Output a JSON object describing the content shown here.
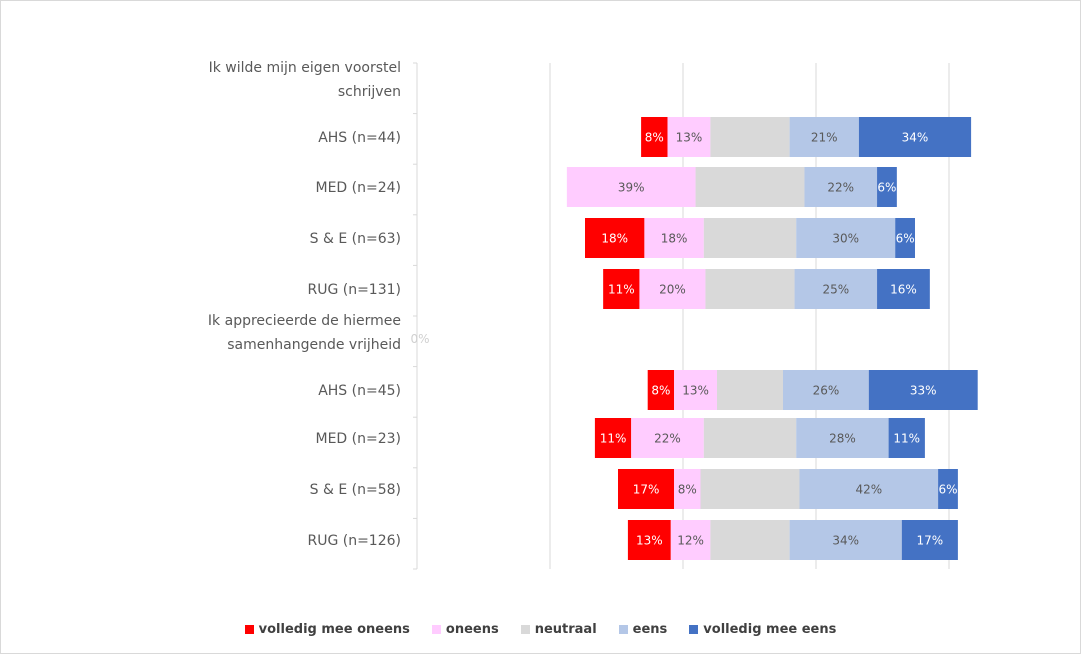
{
  "chart_data": {
    "type": "bar",
    "stacking": "diverging",
    "legend_position": "bottom",
    "grid": true,
    "categories": [
      "Ik wilde mijn eigen voorstel schrijven",
      "AHS (n=44)",
      "MED (n=24)",
      "S & E (n=63)",
      "RUG (n=131)",
      "Ik apprecieerde de hiermee samenhangende vrijheid",
      "AHS (n=45)",
      "MED (n=23)",
      "S & E (n=58)",
      "RUG (n=126)"
    ],
    "series": [
      {
        "name": "volledig mee oneens",
        "color": "#ff0000",
        "label_color": "#ffffff",
        "values": [
          null,
          8,
          0,
          18,
          11,
          null,
          8,
          11,
          17,
          13
        ],
        "labels": [
          null,
          "8%",
          null,
          "18%",
          "11%",
          "0%",
          "8%",
          "11%",
          "17%",
          "13%"
        ]
      },
      {
        "name": "oneens",
        "color": "#ffccff",
        "label_color": "#595959",
        "values": [
          null,
          13,
          39,
          18,
          20,
          null,
          13,
          22,
          8,
          12
        ],
        "labels": [
          null,
          "13%",
          "39%",
          "18%",
          "20%",
          null,
          "13%",
          "22%",
          "8%",
          "12%"
        ]
      },
      {
        "name": "neutraal",
        "color": "#d9d9d9",
        "label_color": "#595959",
        "values": [
          null,
          24,
          33,
          28,
          27,
          null,
          20,
          28,
          30,
          24
        ],
        "labels": [
          null,
          null,
          null,
          null,
          null,
          null,
          null,
          null,
          null,
          null
        ]
      },
      {
        "name": "eens",
        "color": "#b4c7e7",
        "label_color": "#595959",
        "values": [
          null,
          21,
          22,
          30,
          25,
          null,
          26,
          28,
          42,
          34
        ],
        "labels": [
          null,
          "21%",
          "22%",
          "30%",
          "25%",
          null,
          "26%",
          "28%",
          "42%",
          "34%"
        ]
      },
      {
        "name": "volledig mee eens",
        "color": "#4472c4",
        "label_color": "#ffffff",
        "values": [
          null,
          34,
          6,
          6,
          16,
          null,
          33,
          11,
          6,
          17
        ],
        "labels": [
          null,
          "34%",
          "6%",
          "6%",
          "16%",
          null,
          "33%",
          "11%",
          "6%",
          "17%"
        ]
      }
    ]
  }
}
